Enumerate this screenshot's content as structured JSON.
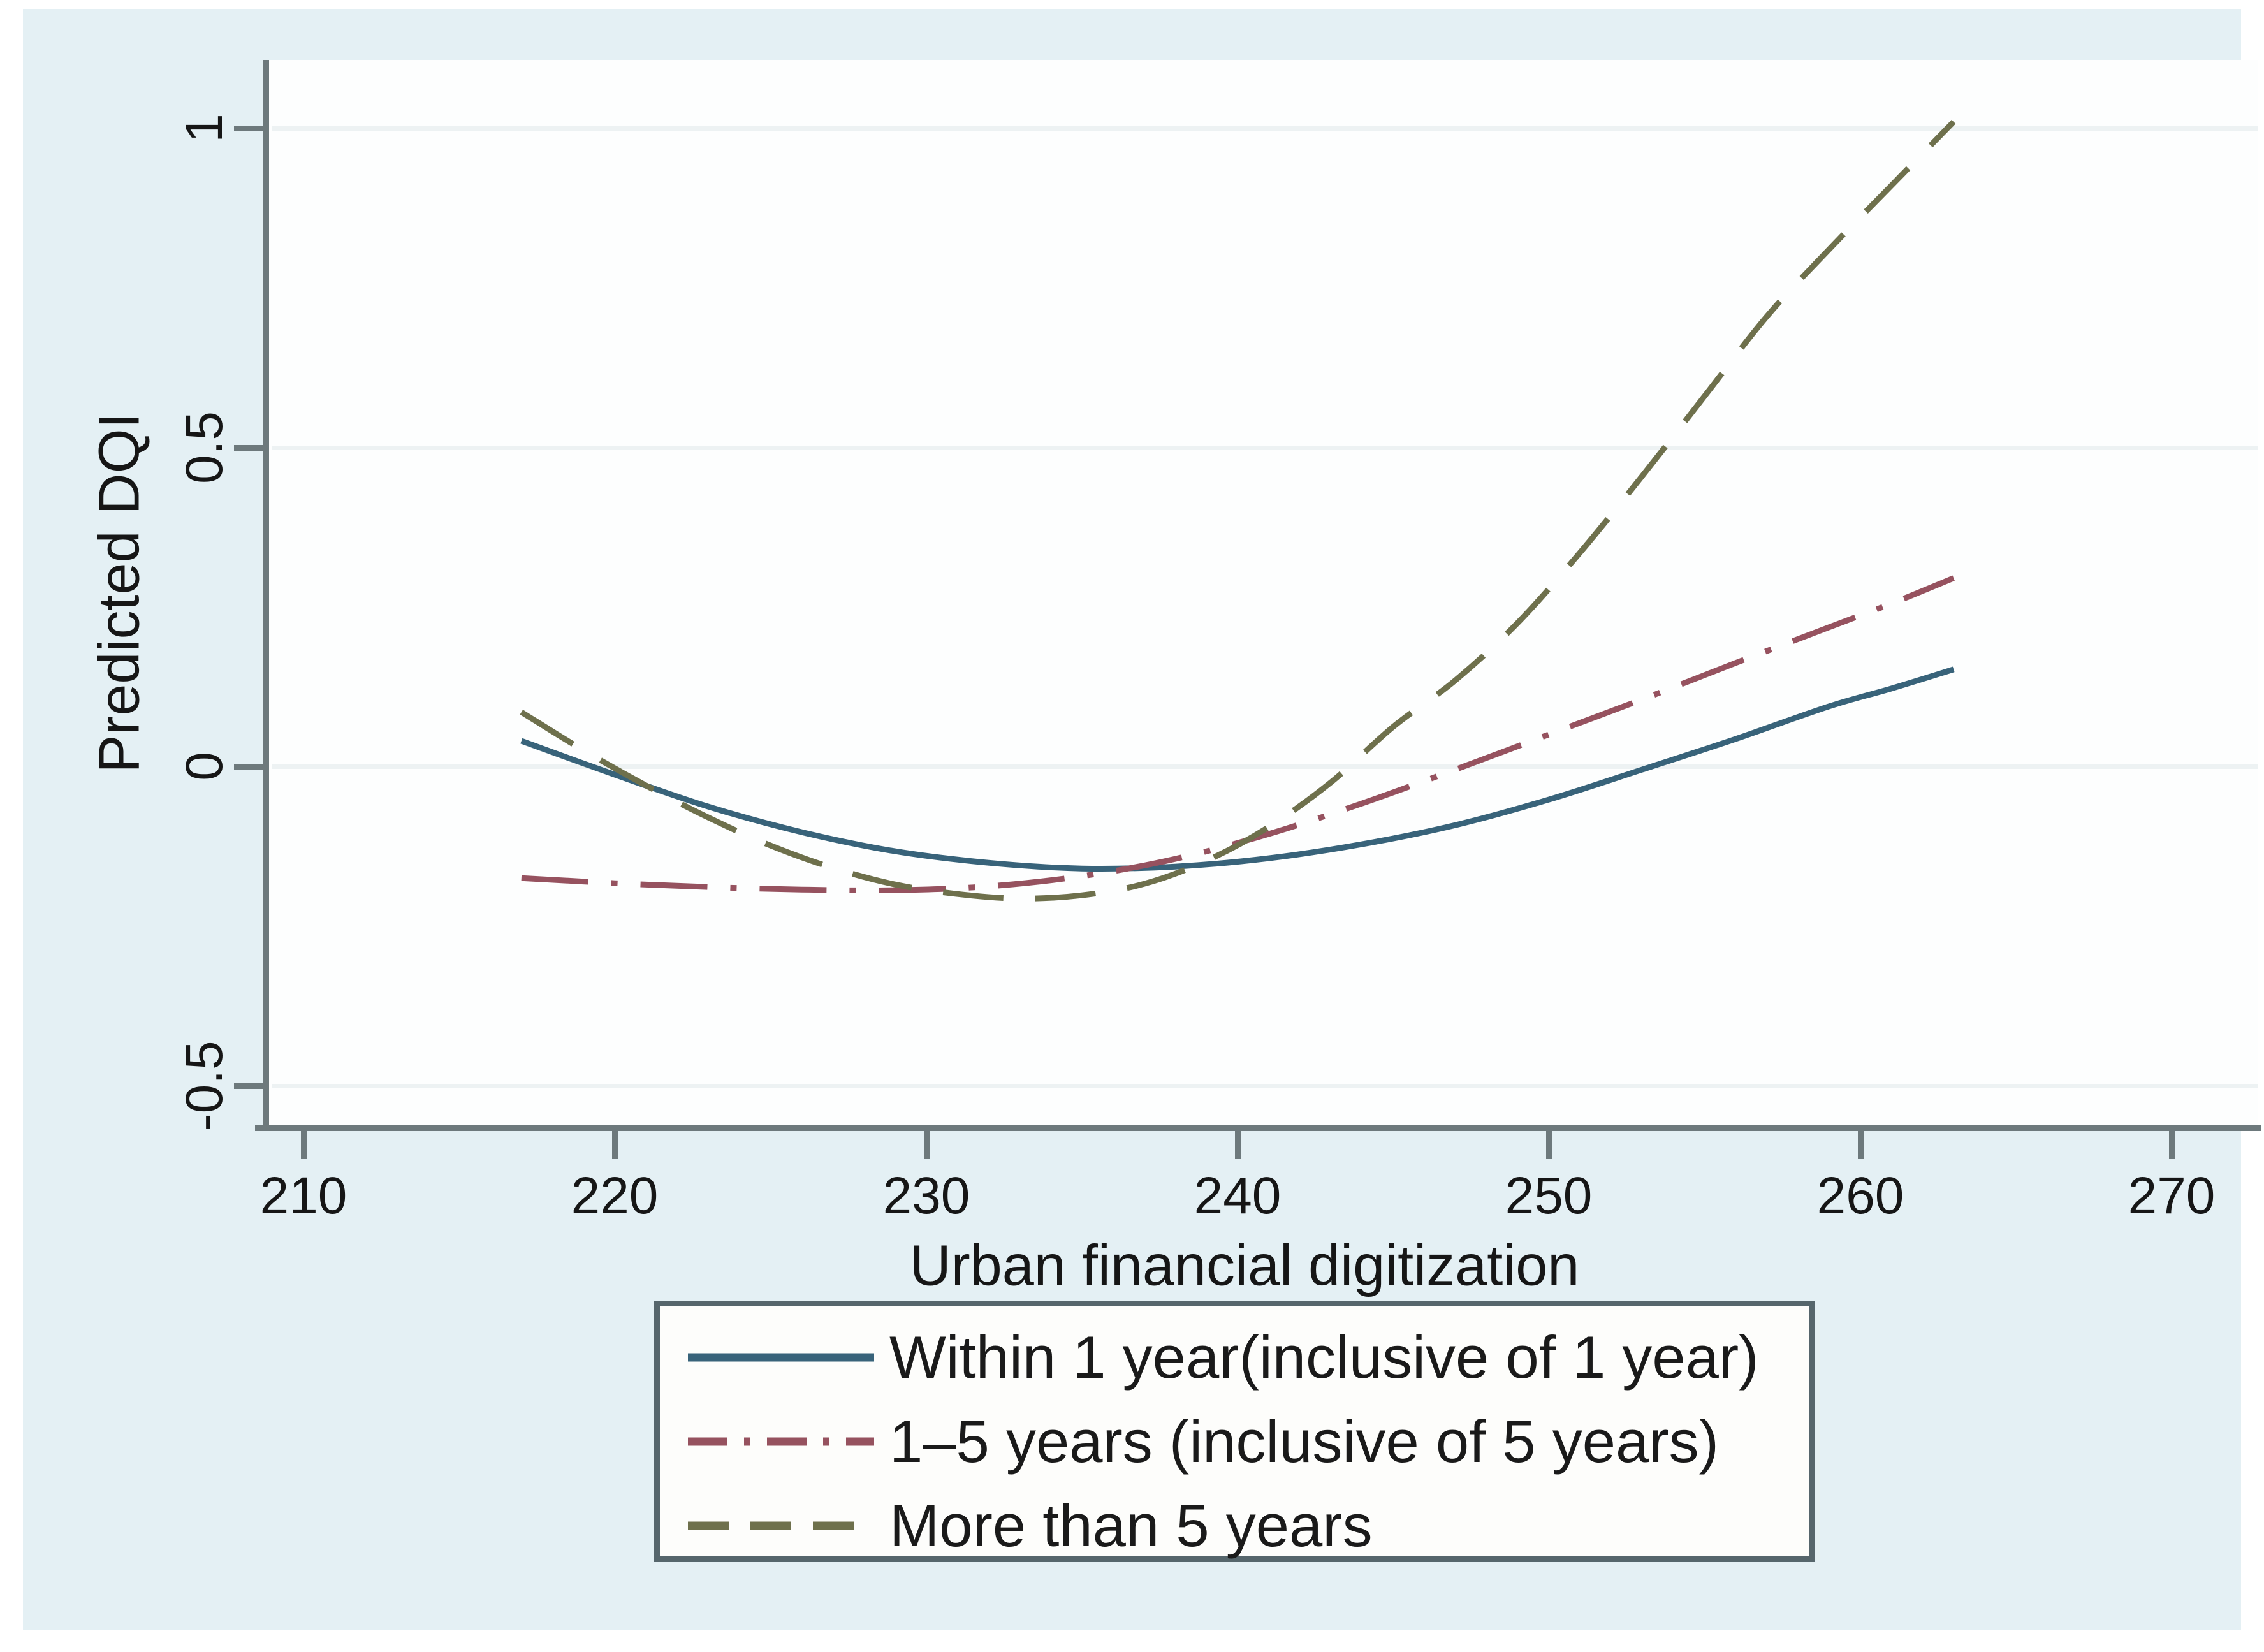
{
  "chart_data": {
    "type": "line",
    "title": "",
    "xlabel": "Urban financial digitization",
    "ylabel": "Predicted DQI",
    "xlim": [
      210,
      270
    ],
    "ylim": [
      -0.5,
      1
    ],
    "grid": "horizontal-only",
    "legend_position": "bottom-center",
    "x_ticks": [
      {
        "label": "210",
        "value": 210
      },
      {
        "label": "220",
        "value": 220
      },
      {
        "label": "230",
        "value": 230
      },
      {
        "label": "240",
        "value": 240
      },
      {
        "label": "250",
        "value": 250
      },
      {
        "label": "260",
        "value": 260
      },
      {
        "label": "270",
        "value": 270
      }
    ],
    "y_ticks": [
      {
        "label": "1",
        "value": 1
      },
      {
        "label": "0.5",
        "value": 0.5
      },
      {
        "label": "0",
        "value": 0
      },
      {
        "label": "-0.5",
        "value": -0.5
      }
    ],
    "series": [
      {
        "name": "Within 1 year(inclusive of 1 year)",
        "color": "#38637a",
        "style": "solid",
        "points": [
          [
            217,
            0.04
          ],
          [
            220,
            -0.013
          ],
          [
            223,
            -0.063
          ],
          [
            226,
            -0.103
          ],
          [
            229,
            -0.133
          ],
          [
            232,
            -0.151
          ],
          [
            235,
            -0.16
          ],
          [
            238,
            -0.157
          ],
          [
            241,
            -0.144
          ],
          [
            244,
            -0.122
          ],
          [
            247,
            -0.092
          ],
          [
            250,
            -0.052
          ],
          [
            253,
            -0.005
          ],
          [
            256,
            0.043
          ],
          [
            259,
            0.094
          ],
          [
            261,
            0.122
          ],
          [
            263,
            0.152
          ]
        ]
      },
      {
        "name": "1–5 years (inclusive of 5 years)",
        "color": "#96525f",
        "style": "dash-dot",
        "points": [
          [
            217,
            -0.175
          ],
          [
            220,
            -0.183
          ],
          [
            223,
            -0.189
          ],
          [
            226,
            -0.193
          ],
          [
            229,
            -0.194
          ],
          [
            232,
            -0.188
          ],
          [
            235,
            -0.172
          ],
          [
            238,
            -0.145
          ],
          [
            241,
            -0.106
          ],
          [
            244,
            -0.058
          ],
          [
            247,
            -0.005
          ],
          [
            250,
            0.05
          ],
          [
            253,
            0.105
          ],
          [
            256,
            0.162
          ],
          [
            259,
            0.218
          ],
          [
            261,
            0.255
          ],
          [
            263,
            0.295
          ]
        ]
      },
      {
        "name": "More than 5 years",
        "color": "#6e704c",
        "style": "long-dash",
        "points": [
          [
            217,
            0.085
          ],
          [
            219,
            0.025
          ],
          [
            221,
            -0.03
          ],
          [
            223,
            -0.08
          ],
          [
            225,
            -0.124
          ],
          [
            227,
            -0.159
          ],
          [
            229,
            -0.185
          ],
          [
            231,
            -0.2
          ],
          [
            233,
            -0.207
          ],
          [
            235,
            -0.202
          ],
          [
            237,
            -0.184
          ],
          [
            239,
            -0.148
          ],
          [
            241,
            -0.095
          ],
          [
            243,
            -0.025
          ],
          [
            245,
            0.062
          ],
          [
            247,
            0.135
          ],
          [
            249,
            0.225
          ],
          [
            251,
            0.335
          ],
          [
            253,
            0.455
          ],
          [
            255,
            0.58
          ],
          [
            257,
            0.705
          ],
          [
            259,
            0.81
          ],
          [
            261,
            0.91
          ],
          [
            263,
            1.01
          ]
        ]
      }
    ]
  },
  "colors": {
    "canvas_background": "#e4f0f4",
    "plot_background": "#fdfefe",
    "axis": "#6d797c",
    "gridline": "#edf2f3",
    "text": "#161616",
    "legend_border": "#56666c",
    "legend_background": "#fdfdfb"
  }
}
